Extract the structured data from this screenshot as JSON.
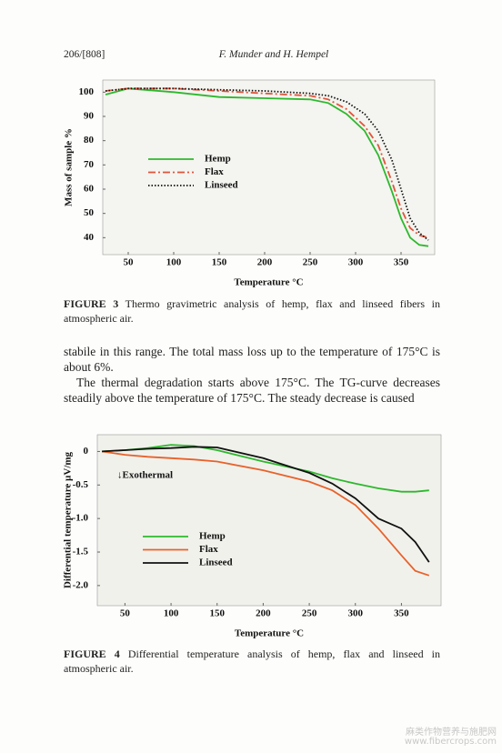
{
  "header": {
    "page": "206/[808]",
    "authors": "F. Munder and H. Hempel"
  },
  "chart_data": [
    {
      "type": "line",
      "ylabel": "Mass of sample %",
      "xlabel": "Temperature °C",
      "x": [
        25,
        50,
        100,
        150,
        200,
        250,
        270,
        290,
        310,
        325,
        340,
        350,
        360,
        370,
        380
      ],
      "series": [
        {
          "name": "Hemp",
          "color": "#2db82d",
          "style": "solid",
          "values": [
            99,
            101.5,
            100,
            98,
            97.5,
            97,
            95.5,
            91,
            84,
            74,
            59,
            48,
            40,
            37,
            36.5
          ]
        },
        {
          "name": "Flax",
          "color": "#e0553a",
          "style": "dashdot",
          "values": [
            100.5,
            101.5,
            101.5,
            100.5,
            99.5,
            98.5,
            97,
            93,
            86,
            78,
            63,
            52,
            44,
            41,
            40
          ]
        },
        {
          "name": "Linseed",
          "color": "#111111",
          "style": "dotted",
          "values": [
            100.5,
            101.5,
            101.5,
            101,
            100.5,
            99.5,
            98.5,
            96,
            91,
            84,
            72,
            60,
            48,
            42,
            39
          ]
        }
      ],
      "xlim": [
        22,
        387
      ],
      "ylim": [
        33,
        105
      ],
      "xticks": [
        50,
        100,
        150,
        200,
        250,
        300,
        350
      ],
      "yticks": [
        40,
        50,
        60,
        70,
        80,
        90,
        100
      ],
      "legend": "center-left"
    },
    {
      "type": "line",
      "ylabel": "Differential temperature  µV/mg",
      "xlabel": "Temperature °C",
      "annotations": [
        "↓Exothermal"
      ],
      "x": [
        25,
        50,
        75,
        100,
        125,
        150,
        200,
        250,
        275,
        300,
        325,
        350,
        365,
        380
      ],
      "series": [
        {
          "name": "Hemp",
          "color": "#2db82d",
          "style": "solid",
          "values": [
            0,
            0.02,
            0.05,
            0.1,
            0.08,
            0.02,
            -0.15,
            -0.3,
            -0.4,
            -0.48,
            -0.55,
            -0.6,
            -0.6,
            -0.58
          ]
        },
        {
          "name": "Flax",
          "color": "#e8622a",
          "style": "solid",
          "values": [
            0,
            -0.05,
            -0.08,
            -0.1,
            -0.12,
            -0.15,
            -0.28,
            -0.45,
            -0.58,
            -0.8,
            -1.15,
            -1.55,
            -1.78,
            -1.85
          ]
        },
        {
          "name": "Linseed",
          "color": "#111111",
          "style": "solid",
          "values": [
            0,
            0.02,
            0.04,
            0.05,
            0.07,
            0.06,
            -0.1,
            -0.32,
            -0.48,
            -0.7,
            -1.0,
            -1.15,
            -1.35,
            -1.65
          ]
        }
      ],
      "xlim": [
        20,
        393
      ],
      "ylim": [
        -2.3,
        0.25
      ],
      "xticks": [
        50,
        100,
        150,
        200,
        250,
        300,
        350
      ],
      "yticks": [
        0,
        -0.5,
        {
          "value": -1,
          "label": "-1.0"
        },
        -1.5,
        {
          "value": -2,
          "label": "-2.0"
        }
      ],
      "legend": "center-left"
    }
  ],
  "captions": [
    {
      "label": "FIGURE 3",
      "text": "Thermo gravimetric analysis of hemp, flax and linseed fibers in atmospheric air."
    },
    {
      "label": "FIGURE 4",
      "text": "Differential temperature analysis of hemp, flax and linseed in atmospheric air."
    }
  ],
  "body": [
    "stabile in this range. The total mass loss up to the temperature of 175°C is about 6%.",
    "The thermal degradation starts above 175°C. The TG-curve decreases steadily above the temperature of 175°C. The steady decrease is caused"
  ],
  "watermark": [
    "麻类作物营养与施肥网",
    "www.fibercrops.com"
  ]
}
